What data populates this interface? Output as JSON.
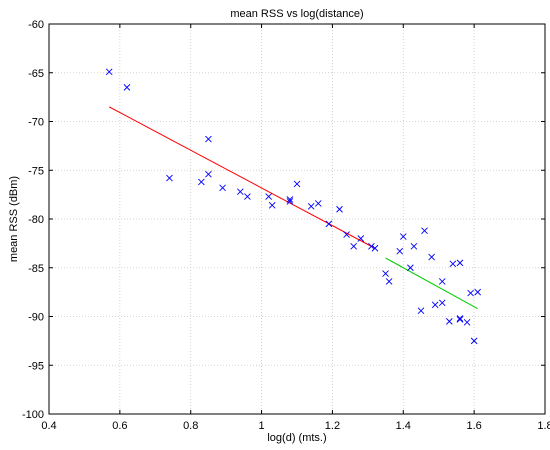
{
  "chart_data": {
    "type": "scatter",
    "title": "mean RSS vs log(distance)",
    "xlabel": "log(d) (mts.)",
    "ylabel": "mean RSS (dBm)",
    "xlim": [
      0.4,
      1.8
    ],
    "ylim": [
      -100,
      -60
    ],
    "xticks": [
      "0.4",
      "0.6",
      "0.8",
      "1",
      "1.2",
      "1.4",
      "1.6",
      "1.8"
    ],
    "yticks": [
      "-100",
      "-95",
      "-90",
      "-85",
      "-80",
      "-75",
      "-70",
      "-65",
      "-60"
    ],
    "grid": true,
    "marker": "x",
    "colors": {
      "points": "#0000ff",
      "fit1": "#ff0000",
      "fit2": "#00cc00"
    },
    "series": [
      {
        "points": [
          [
            0.57,
            -64.9
          ],
          [
            0.62,
            -66.5
          ],
          [
            0.74,
            -75.8
          ],
          [
            0.83,
            -76.2
          ],
          [
            0.85,
            -71.8
          ],
          [
            0.85,
            -75.4
          ],
          [
            0.89,
            -76.8
          ],
          [
            0.94,
            -77.2
          ],
          [
            0.96,
            -77.7
          ],
          [
            1.02,
            -77.7
          ],
          [
            1.03,
            -78.6
          ],
          [
            1.08,
            -78.2
          ],
          [
            1.08,
            -78.0
          ],
          [
            1.1,
            -76.4
          ],
          [
            1.14,
            -78.7
          ],
          [
            1.16,
            -78.4
          ],
          [
            1.19,
            -80.5
          ],
          [
            1.22,
            -79.0
          ],
          [
            1.24,
            -81.6
          ],
          [
            1.26,
            -82.8
          ],
          [
            1.28,
            -82.0
          ],
          [
            1.31,
            -82.8
          ],
          [
            1.32,
            -83.0
          ],
          [
            1.35,
            -85.6
          ],
          [
            1.36,
            -86.4
          ],
          [
            1.39,
            -83.3
          ],
          [
            1.4,
            -81.8
          ],
          [
            1.42,
            -85.0
          ],
          [
            1.43,
            -82.8
          ],
          [
            1.45,
            -89.4
          ],
          [
            1.46,
            -81.2
          ],
          [
            1.48,
            -83.9
          ],
          [
            1.49,
            -88.8
          ],
          [
            1.51,
            -86.4
          ],
          [
            1.51,
            -88.6
          ],
          [
            1.53,
            -90.5
          ],
          [
            1.54,
            -84.6
          ],
          [
            1.56,
            -84.5
          ],
          [
            1.56,
            -90.2
          ],
          [
            1.56,
            -90.3
          ],
          [
            1.58,
            -90.6
          ],
          [
            1.59,
            -87.6
          ],
          [
            1.6,
            -92.5
          ],
          [
            1.61,
            -87.5
          ]
        ]
      }
    ],
    "fit_lines": [
      {
        "x": [
          0.57,
          1.32
        ],
        "y": [
          -68.5,
          -83.0
        ]
      },
      {
        "x": [
          1.35,
          1.61
        ],
        "y": [
          -84.0,
          -89.2
        ]
      }
    ]
  }
}
